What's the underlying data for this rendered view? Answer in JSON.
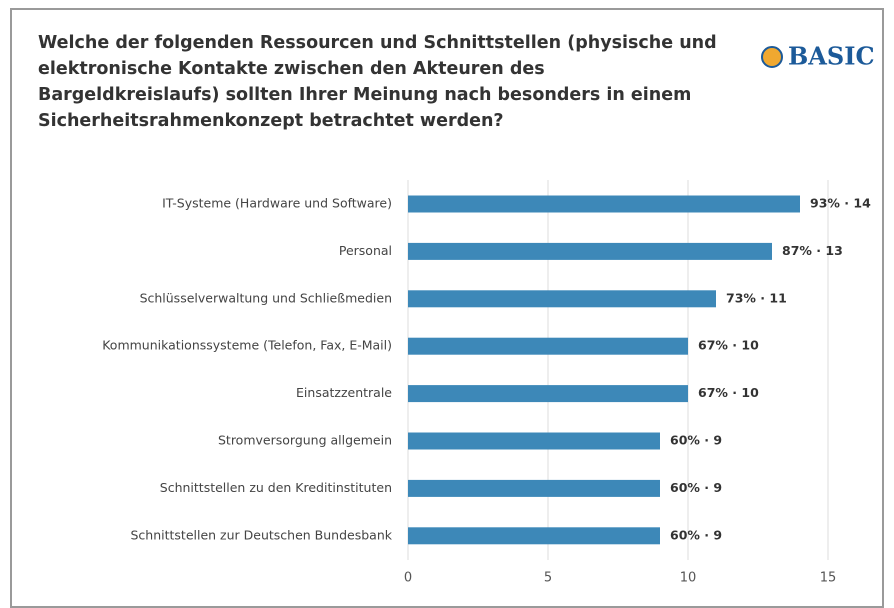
{
  "logo": "BASIC",
  "chart_data": {
    "type": "bar",
    "orientation": "horizontal",
    "title": "Welche der folgenden Ressourcen und Schnittstellen (physische und elektronische Kontakte zwischen den Akteuren des Bargeldkreislaufs) sollten Ihrer Meinung nach besonders in einem Sicherheitsrahmenkonzept betrachtet werden?",
    "categories": [
      "IT-Systeme (Hardware und Software)",
      "Personal",
      "Schlüsselverwaltung und Schließmedien",
      "Kommunikationssysteme (Telefon, Fax, E-Mail)",
      "Einsatzzentrale",
      "Stromversorgung allgemein",
      "Schnittstellen zu den Kreditinstituten",
      "Schnittstellen zur Deutschen Bundesbank"
    ],
    "values": [
      14,
      13,
      11,
      10,
      10,
      9,
      9,
      9
    ],
    "value_labels": [
      "93% · 14",
      "87% · 13",
      "73% · 11",
      "67% · 10",
      "67% · 10",
      "60% · 9",
      "60% · 9",
      "60% · 9"
    ],
    "color": "#3d88b8",
    "xlim": [
      0,
      15
    ],
    "xticks": [
      0,
      5,
      10,
      15
    ],
    "grid": true
  }
}
